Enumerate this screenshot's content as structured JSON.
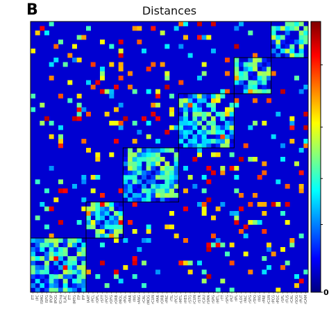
{
  "panel_label": "B",
  "chart_data": {
    "type": "heatmap",
    "title": "Distances",
    "xlabel": "",
    "ylabel": "",
    "n": 60,
    "colormap": "jet",
    "colorbar": {
      "ticks": [
        {
          "label": "0",
          "value": 0.0
        }
      ]
    },
    "modules": [
      [
        0,
        12
      ],
      [
        12,
        20
      ],
      [
        20,
        32
      ],
      [
        32,
        44
      ],
      [
        44,
        52
      ],
      [
        52,
        60
      ]
    ],
    "x_tick_labels": [
      "ITT",
      "IPC",
      "ISMG",
      "ISFG",
      "IPOP",
      "IPOG",
      "ICing",
      "ILAC",
      "ITT",
      "IMTG",
      "ITP",
      "IFP",
      "IAAT",
      "rPCL",
      "rOPL",
      "rSTT",
      "rPOT",
      "rOFG",
      "rORB",
      "rMOL",
      "rPOL",
      "rPAR",
      "rINS",
      "rANG",
      "rCAL",
      "rMOG",
      "rCUN",
      "rPAR",
      "rORB",
      "rPRC",
      "rTIL",
      "rPCC",
      "rMTL",
      "rHES",
      "rSTG",
      "rCUN",
      "rSTR",
      "rCAU",
      "rSMA",
      "rSPG",
      "rMTL",
      "rTT",
      "rSFG",
      "rPLT",
      "rIPL",
      "rLOC",
      "rPAC",
      "rSFG",
      "rTPO",
      "rINS",
      "rPRE",
      "rCUN",
      "rPCG",
      "rPOC",
      "rSPL",
      "rFUS",
      "rCAL",
      "rSOG",
      "rPUT",
      "rCAM"
    ]
  }
}
